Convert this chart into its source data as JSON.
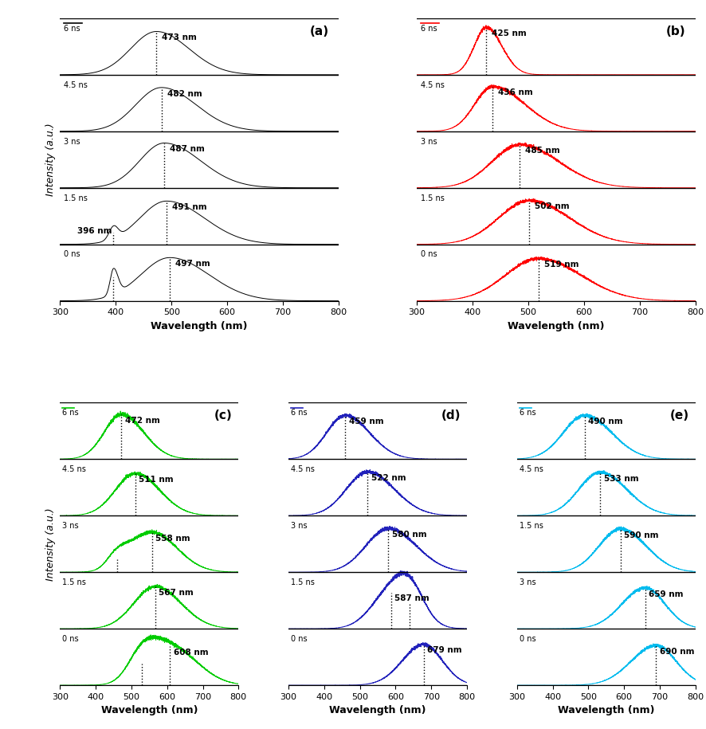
{
  "panels": [
    {
      "label": "(a)",
      "color": "#000000",
      "noisy": false,
      "legend_color": "#000000",
      "traces": [
        {
          "time": "6 ns",
          "peak": 473,
          "lsig": 46,
          "rsig": 58,
          "amp": 0.87,
          "sec_peak": null,
          "sec_amp": 0.0,
          "sec_lsig": 0,
          "sec_rsig": 0,
          "sec_label": false
        },
        {
          "time": "4.5 ns",
          "peak": 482,
          "lsig": 46,
          "rsig": 62,
          "amp": 0.88,
          "sec_peak": null,
          "sec_amp": 0.0,
          "sec_lsig": 0,
          "sec_rsig": 0,
          "sec_label": false
        },
        {
          "time": "3 ns",
          "peak": 487,
          "lsig": 44,
          "rsig": 65,
          "amp": 0.9,
          "sec_peak": null,
          "sec_amp": 0.0,
          "sec_lsig": 0,
          "sec_rsig": 0,
          "sec_label": false
        },
        {
          "time": "1.5 ns",
          "peak": 491,
          "lsig": 48,
          "rsig": 68,
          "amp": 0.87,
          "sec_peak": 396,
          "sec_amp": 0.25,
          "sec_lsig": 8,
          "sec_rsig": 8,
          "sec_label": true
        },
        {
          "time": "0 ns",
          "peak": 497,
          "lsig": 52,
          "rsig": 70,
          "amp": 0.87,
          "sec_peak": 396,
          "sec_amp": 0.52,
          "sec_lsig": 6,
          "sec_rsig": 8,
          "sec_label": false
        }
      ]
    },
    {
      "label": "(b)",
      "color": "#FF0000",
      "noisy": true,
      "legend_color": "#FF0000",
      "traces": [
        {
          "time": "6 ns",
          "peak": 425,
          "lsig": 22,
          "rsig": 28,
          "amp": 0.95,
          "sec_peak": null,
          "sec_amp": 0.0,
          "sec_lsig": 0,
          "sec_rsig": 0,
          "sec_label": false
        },
        {
          "time": "4.5 ns",
          "peak": 436,
          "lsig": 32,
          "rsig": 58,
          "amp": 0.9,
          "sec_peak": null,
          "sec_amp": 0.0,
          "sec_lsig": 0,
          "sec_rsig": 0,
          "sec_label": false
        },
        {
          "time": "3 ns",
          "peak": 485,
          "lsig": 50,
          "rsig": 70,
          "amp": 0.87,
          "sec_peak": null,
          "sec_amp": 0.0,
          "sec_lsig": 0,
          "sec_rsig": 0,
          "sec_label": false
        },
        {
          "time": "1.5 ns",
          "peak": 502,
          "lsig": 55,
          "rsig": 72,
          "amp": 0.88,
          "sec_peak": null,
          "sec_amp": 0.0,
          "sec_lsig": 0,
          "sec_rsig": 0,
          "sec_label": false
        },
        {
          "time": "0 ns",
          "peak": 519,
          "lsig": 60,
          "rsig": 76,
          "amp": 0.85,
          "sec_peak": null,
          "sec_amp": 0.0,
          "sec_lsig": 0,
          "sec_rsig": 0,
          "sec_label": false
        }
      ]
    },
    {
      "label": "(c)",
      "color": "#00CC00",
      "noisy": true,
      "legend_color": "#00CC00",
      "traces": [
        {
          "time": "6 ns",
          "peak": 472,
          "lsig": 48,
          "rsig": 62,
          "amp": 0.9,
          "sec_peak": null,
          "sec_amp": 0.0,
          "sec_lsig": 0,
          "sec_rsig": 0,
          "sec_label": false
        },
        {
          "time": "4.5 ns",
          "peak": 511,
          "lsig": 56,
          "rsig": 68,
          "amp": 0.85,
          "sec_peak": null,
          "sec_amp": 0.0,
          "sec_lsig": 0,
          "sec_rsig": 0,
          "sec_label": false
        },
        {
          "time": "3 ns",
          "peak": 558,
          "lsig": 60,
          "rsig": 70,
          "amp": 0.8,
          "sec_peak": 460,
          "sec_amp": 0.28,
          "sec_lsig": 28,
          "sec_rsig": 35,
          "sec_label": false
        },
        {
          "time": "1.5 ns",
          "peak": 567,
          "lsig": 60,
          "rsig": 72,
          "amp": 0.85,
          "sec_peak": null,
          "sec_amp": 0.0,
          "sec_lsig": 0,
          "sec_rsig": 0,
          "sec_label": false
        },
        {
          "time": "0 ns",
          "peak": 608,
          "lsig": 65,
          "rsig": 75,
          "amp": 0.78,
          "sec_peak": 530,
          "sec_amp": 0.48,
          "sec_lsig": 38,
          "sec_rsig": 42,
          "sec_label": false
        }
      ]
    },
    {
      "label": "(d)",
      "color": "#2222BB",
      "noisy": true,
      "legend_color": "#2222BB",
      "traces": [
        {
          "time": "6 ns",
          "peak": 459,
          "lsig": 52,
          "rsig": 68,
          "amp": 0.88,
          "sec_peak": null,
          "sec_amp": 0.0,
          "sec_lsig": 0,
          "sec_rsig": 0,
          "sec_label": false
        },
        {
          "time": "4.5 ns",
          "peak": 522,
          "lsig": 60,
          "rsig": 75,
          "amp": 0.88,
          "sec_peak": null,
          "sec_amp": 0.0,
          "sec_lsig": 0,
          "sec_rsig": 0,
          "sec_label": false
        },
        {
          "time": "3 ns",
          "peak": 580,
          "lsig": 63,
          "rsig": 78,
          "amp": 0.88,
          "sec_peak": null,
          "sec_amp": 0.0,
          "sec_lsig": 0,
          "sec_rsig": 0,
          "sec_label": false
        },
        {
          "time": "1.5 ns",
          "peak": 587,
          "lsig": 55,
          "rsig": 62,
          "amp": 0.72,
          "sec_peak": 639,
          "sec_amp": 0.55,
          "sec_lsig": 40,
          "sec_rsig": 40,
          "sec_label": false
        },
        {
          "time": "0 ns",
          "peak": 679,
          "lsig": 60,
          "rsig": 52,
          "amp": 0.82,
          "sec_peak": null,
          "sec_amp": 0.0,
          "sec_lsig": 0,
          "sec_rsig": 0,
          "sec_label": false
        }
      ]
    },
    {
      "label": "(e)",
      "color": "#00BBEE",
      "noisy": true,
      "legend_color": "#00BBEE",
      "traces": [
        {
          "time": "6 ns",
          "peak": 490,
          "lsig": 60,
          "rsig": 75,
          "amp": 0.88,
          "sec_peak": null,
          "sec_amp": 0.0,
          "sec_lsig": 0,
          "sec_rsig": 0,
          "sec_label": false
        },
        {
          "time": "4.5 ns",
          "peak": 533,
          "lsig": 60,
          "rsig": 75,
          "amp": 0.87,
          "sec_peak": null,
          "sec_amp": 0.0,
          "sec_lsig": 0,
          "sec_rsig": 0,
          "sec_label": false
        },
        {
          "time": "1.5 ns",
          "peak": 590,
          "lsig": 60,
          "rsig": 72,
          "amp": 0.87,
          "sec_peak": null,
          "sec_amp": 0.0,
          "sec_lsig": 0,
          "sec_rsig": 0,
          "sec_label": false
        },
        {
          "time": "3 ns",
          "peak": 659,
          "lsig": 65,
          "rsig": 56,
          "amp": 0.82,
          "sec_peak": null,
          "sec_amp": 0.0,
          "sec_lsig": 0,
          "sec_rsig": 0,
          "sec_label": false
        },
        {
          "time": "0 ns",
          "peak": 690,
          "lsig": 70,
          "rsig": 56,
          "amp": 0.8,
          "sec_peak": null,
          "sec_amp": 0.0,
          "sec_lsig": 0,
          "sec_rsig": 0,
          "sec_label": false
        }
      ]
    }
  ],
  "xlabel": "Wavelength (nm)",
  "ylabel": "Intensity (a.u.)",
  "xmin": 300,
  "xmax": 800,
  "xticks": [
    300,
    400,
    500,
    600,
    700,
    800
  ]
}
